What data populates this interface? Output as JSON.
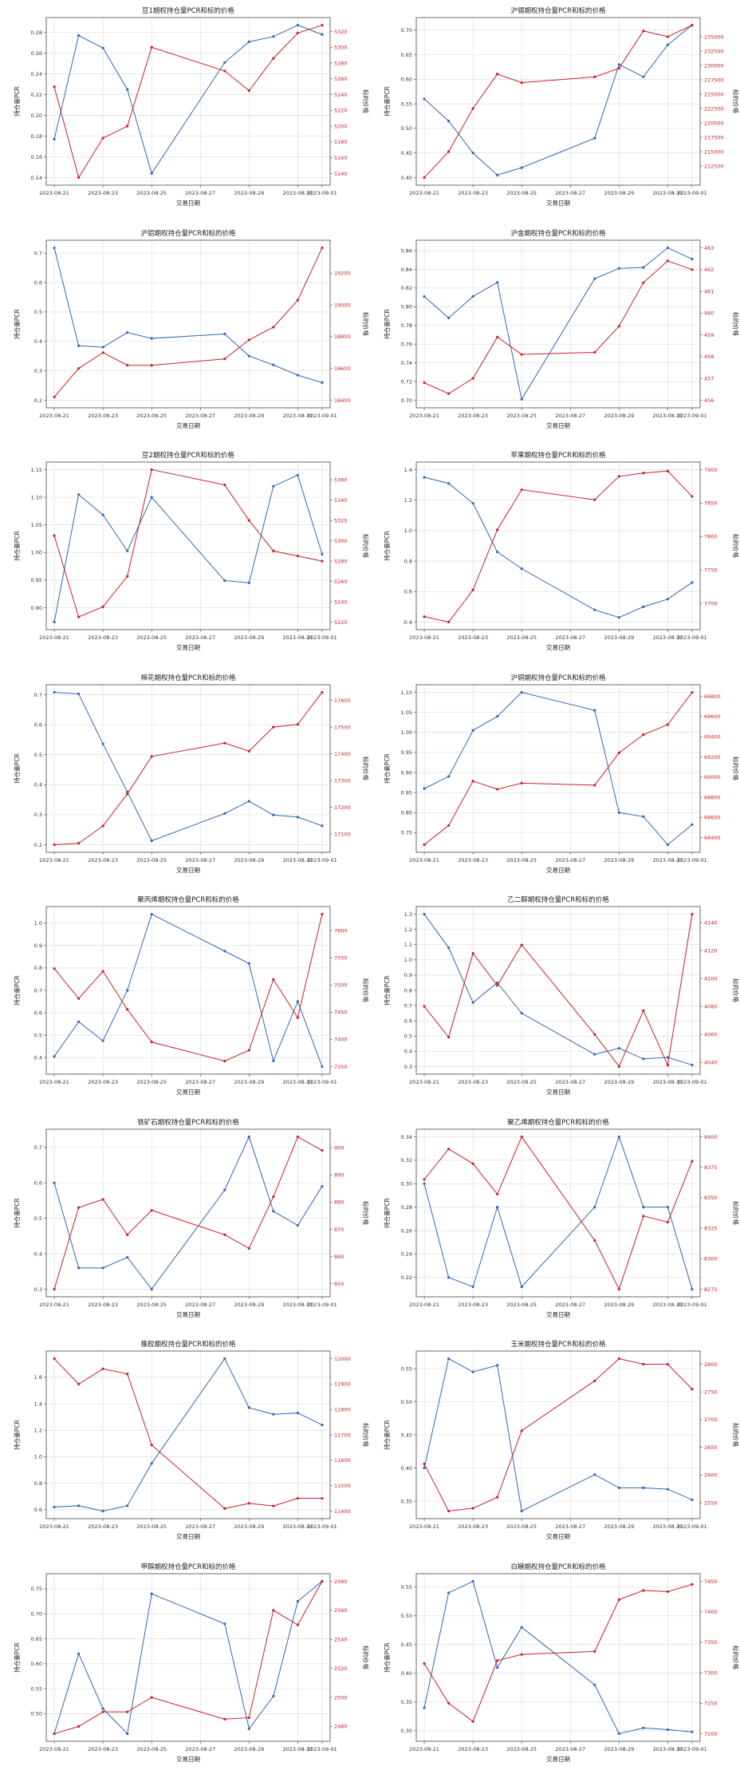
{
  "x_label": "交易日期",
  "y_left_label": "持仓量PCR",
  "y_right_label": "标的价格",
  "dates": [
    "2023-08-21",
    "2023-08-22",
    "2023-08-23",
    "2023-08-24",
    "2023-08-25",
    "2023-08-28",
    "2023-08-29",
    "2023-08-30",
    "2023-08-31",
    "2023-09-01"
  ],
  "x_tick_labels": [
    "2023-08-21",
    "2023-08-23",
    "2023-08-25",
    "2023-08-27",
    "2023-08-29",
    "2023-08-31",
    "2023-09-01"
  ],
  "colors": {
    "pcr": "#3465b8",
    "price": "#c8202a",
    "grid": "#d9d9d9",
    "axis": "#444444"
  },
  "chart_data": [
    {
      "type": "line",
      "title": "豆1期权持仓量PCR和标的价格",
      "left": {
        "values": [
          0.177,
          0.277,
          0.265,
          0.225,
          0.144,
          0.251,
          0.271,
          0.276,
          0.287,
          0.278
        ],
        "ticks": [
          0.14,
          0.16,
          0.18,
          0.2,
          0.22,
          0.24,
          0.26,
          0.28
        ],
        "decimals": 2
      },
      "right": {
        "values": [
          5250,
          5135,
          5185,
          5200,
          5300,
          5270,
          5245,
          5286,
          5318,
          5328
        ],
        "ticks": [
          5140,
          5160,
          5180,
          5200,
          5220,
          5240,
          5260,
          5280,
          5300,
          5320
        ],
        "decimals": 0
      }
    },
    {
      "type": "line",
      "title": "沪锡期权持仓量PCR和标的价格",
      "left": {
        "values": [
          0.56,
          0.515,
          0.45,
          0.405,
          0.42,
          0.48,
          0.63,
          0.605,
          0.67,
          0.71
        ],
        "ticks": [
          0.4,
          0.45,
          0.5,
          0.55,
          0.6,
          0.65,
          0.7
        ],
        "decimals": 2
      },
      "right": {
        "values": [
          210500,
          215000,
          222500,
          228500,
          227000,
          228000,
          229500,
          236000,
          235000,
          237000
        ],
        "ticks": [
          212500,
          215000,
          217500,
          220000,
          222500,
          225000,
          227500,
          230000,
          232500,
          235000
        ],
        "decimals": 0
      }
    },
    {
      "type": "line",
      "title": "沪铝期权持仓量PCR和标的价格",
      "left": {
        "values": [
          0.718,
          0.385,
          0.38,
          0.43,
          0.41,
          0.425,
          0.35,
          0.32,
          0.285,
          0.26
        ],
        "ticks": [
          0.2,
          0.3,
          0.4,
          0.5,
          0.6,
          0.7
        ],
        "decimals": 1
      },
      "right": {
        "values": [
          18420,
          18600,
          18700,
          18620,
          18620,
          18660,
          18780,
          18860,
          19030,
          19360
        ],
        "ticks": [
          18400,
          18600,
          18800,
          19000,
          19200
        ],
        "decimals": 0
      }
    },
    {
      "type": "line",
      "title": "沪金期权持仓量PCR和标的价格",
      "left": {
        "values": [
          0.811,
          0.788,
          0.811,
          0.826,
          0.701,
          0.83,
          0.841,
          0.842,
          0.863,
          0.851
        ],
        "ticks": [
          0.7,
          0.72,
          0.74,
          0.76,
          0.78,
          0.8,
          0.82,
          0.84,
          0.86
        ],
        "decimals": 2
      },
      "right": {
        "values": [
          456.8,
          456.3,
          457.0,
          458.9,
          458.1,
          458.2,
          459.4,
          461.4,
          462.4,
          462.0
        ],
        "ticks": [
          456,
          457,
          458,
          459,
          460,
          461,
          462,
          463
        ],
        "decimals": 0
      }
    },
    {
      "type": "line",
      "title": "豆2期权持仓量PCR和标的价格",
      "left": {
        "values": [
          0.874,
          1.105,
          1.068,
          1.003,
          1.1,
          0.949,
          0.945,
          1.12,
          1.14,
          0.997
        ],
        "ticks": [
          0.9,
          0.95,
          1.0,
          1.05,
          1.1,
          1.15
        ],
        "decimals": 2
      },
      "right": {
        "values": [
          5305,
          5225,
          5235,
          5265,
          5370,
          5355,
          5320,
          5290,
          5285,
          5280
        ],
        "ticks": [
          5220,
          5240,
          5260,
          5280,
          5300,
          5320,
          5340,
          5360
        ],
        "decimals": 0
      }
    },
    {
      "type": "line",
      "title": "苹果期权持仓量PCR和标的价格",
      "left": {
        "values": [
          1.35,
          1.31,
          1.18,
          0.86,
          0.75,
          0.48,
          0.43,
          0.5,
          0.55,
          0.66
        ],
        "ticks": [
          0.4,
          0.6,
          0.8,
          1.0,
          1.2,
          1.4
        ],
        "decimals": 1
      },
      "right": {
        "values": [
          7680,
          7672,
          7720,
          7810,
          7870,
          7855,
          7890,
          7895,
          7898,
          7860
        ],
        "ticks": [
          7700,
          7750,
          7800,
          7850,
          7900
        ],
        "decimals": 0
      }
    },
    {
      "type": "line",
      "title": "棉花期权持仓量PCR和标的价格",
      "left": {
        "values": [
          0.708,
          0.703,
          0.536,
          0.376,
          0.213,
          0.304,
          0.345,
          0.299,
          0.292,
          0.263
        ],
        "ticks": [
          0.2,
          0.3,
          0.4,
          0.5,
          0.6,
          0.7
        ],
        "decimals": 1
      },
      "right": {
        "values": [
          17060,
          17065,
          17130,
          17250,
          17390,
          17440,
          17410,
          17500,
          17510,
          17630
        ],
        "ticks": [
          17100,
          17200,
          17300,
          17400,
          17500,
          17600
        ],
        "decimals": 0
      }
    },
    {
      "type": "line",
      "title": "沪铜期权持仓量PCR和标的价格",
      "left": {
        "values": [
          0.86,
          0.89,
          1.005,
          1.04,
          1.1,
          1.055,
          0.8,
          0.79,
          0.72,
          0.77
        ],
        "ticks": [
          0.75,
          0.8,
          0.85,
          0.9,
          0.95,
          1.0,
          1.05,
          1.1
        ],
        "decimals": 2
      },
      "right": {
        "values": [
          68330,
          68520,
          68960,
          68880,
          68940,
          68920,
          69240,
          69420,
          69520,
          69840
        ],
        "ticks": [
          68400,
          68600,
          68800,
          69000,
          69200,
          69400,
          69600,
          69800
        ],
        "decimals": 0
      }
    },
    {
      "type": "line",
      "title": "聚丙烯期权持仓量PCR和标的价格",
      "left": {
        "values": [
          0.405,
          0.56,
          0.475,
          0.7,
          1.04,
          0.875,
          0.82,
          0.385,
          0.65,
          0.36
        ],
        "ticks": [
          0.4,
          0.5,
          0.6,
          0.7,
          0.8,
          0.9,
          1.0
        ],
        "decimals": 1
      },
      "right": {
        "values": [
          7530,
          7475,
          7525,
          7455,
          7395,
          7360,
          7380,
          7510,
          7440,
          7630
        ],
        "ticks": [
          7350,
          7400,
          7450,
          7500,
          7550,
          7600
        ],
        "decimals": 0
      }
    },
    {
      "type": "line",
      "title": "乙二醇期权持仓量PCR和标的价格",
      "left": {
        "values": [
          1.3,
          1.08,
          0.72,
          0.85,
          0.65,
          0.38,
          0.42,
          0.35,
          0.36,
          0.31
        ],
        "ticks": [
          0.3,
          0.4,
          0.5,
          0.6,
          0.7,
          0.8,
          0.9,
          1.0,
          1.1,
          1.2,
          1.3
        ],
        "decimals": 1
      },
      "right": {
        "values": [
          4080,
          4058,
          4118,
          4095,
          4124,
          4060,
          4037,
          4077,
          4038,
          4146
        ],
        "ticks": [
          4040,
          4060,
          4080,
          4100,
          4120,
          4140
        ],
        "decimals": 0
      }
    },
    {
      "type": "line",
      "title": "铁矿石期权持仓量PCR和标的价格",
      "left": {
        "values": [
          0.6,
          0.36,
          0.36,
          0.39,
          0.3,
          0.58,
          0.73,
          0.52,
          0.48,
          0.59
        ],
        "ticks": [
          0.3,
          0.4,
          0.5,
          0.6,
          0.7
        ],
        "decimals": 1
      },
      "right": {
        "values": [
          848,
          878,
          881,
          868,
          877,
          868,
          863,
          882,
          904,
          899
        ],
        "ticks": [
          850,
          860,
          870,
          880,
          890,
          900
        ],
        "decimals": 0
      }
    },
    {
      "type": "line",
      "title": "聚乙烯期权持仓量PCR和标的价格",
      "left": {
        "values": [
          0.3,
          0.22,
          0.212,
          0.28,
          0.212,
          0.28,
          0.34,
          0.28,
          0.28,
          0.21
        ],
        "ticks": [
          0.22,
          0.24,
          0.26,
          0.28,
          0.3,
          0.32,
          0.34
        ],
        "decimals": 2
      },
      "right": {
        "values": [
          8365,
          8390,
          8378,
          8353,
          8400,
          8315,
          8275,
          8335,
          8330,
          8380
        ],
        "ticks": [
          8275,
          8300,
          8325,
          8350,
          8375,
          8400
        ],
        "decimals": 0
      }
    },
    {
      "type": "line",
      "title": "橡胶期权持仓量PCR和标的价格",
      "left": {
        "values": [
          0.62,
          0.63,
          0.59,
          0.63,
          0.95,
          1.74,
          1.37,
          1.32,
          1.33,
          1.24
        ],
        "ticks": [
          0.6,
          0.8,
          1.0,
          1.2,
          1.4,
          1.6
        ],
        "decimals": 1
      },
      "right": {
        "values": [
          12000,
          11900,
          11960,
          11940,
          11660,
          11410,
          11430,
          11420,
          11450,
          11450
        ],
        "ticks": [
          11400,
          11500,
          11600,
          11700,
          11800,
          11900,
          12000
        ],
        "decimals": 0
      }
    },
    {
      "type": "line",
      "title": "玉米期权持仓量PCR和标的价格",
      "left": {
        "values": [
          0.4,
          0.565,
          0.545,
          0.555,
          0.335,
          0.39,
          0.37,
          0.37,
          0.368,
          0.352
        ],
        "ticks": [
          0.35,
          0.4,
          0.45,
          0.5,
          0.55
        ],
        "decimals": 2
      },
      "right": {
        "values": [
          2620,
          2535,
          2540,
          2560,
          2680,
          2770,
          2810,
          2800,
          2800,
          2755
        ],
        "ticks": [
          2550,
          2600,
          2650,
          2700,
          2750,
          2800
        ],
        "decimals": 0
      }
    },
    {
      "type": "line",
      "title": "甲醇期权持仓量PCR和标的价格",
      "left": {
        "values": [
          0.46,
          0.62,
          0.51,
          0.46,
          0.74,
          0.68,
          0.47,
          0.535,
          0.725,
          0.765
        ],
        "ticks": [
          0.5,
          0.55,
          0.6,
          0.65,
          0.7,
          0.75
        ],
        "decimals": 2
      },
      "right": {
        "values": [
          2475,
          2480,
          2490,
          2490,
          2500,
          2485,
          2486,
          2560,
          2550,
          2580
        ],
        "ticks": [
          2480,
          2500,
          2520,
          2540,
          2560,
          2580
        ],
        "decimals": 0
      }
    },
    {
      "type": "line",
      "title": "白糖期权持仓量PCR和标的价格",
      "left": {
        "values": [
          0.34,
          0.54,
          0.56,
          0.41,
          0.48,
          0.38,
          0.295,
          0.305,
          0.302,
          0.298
        ],
        "ticks": [
          0.3,
          0.35,
          0.4,
          0.45,
          0.5,
          0.55
        ],
        "decimals": 2
      },
      "right": {
        "values": [
          7315,
          7250,
          7220,
          7320,
          7330,
          7335,
          7420,
          7435,
          7433,
          7445
        ],
        "ticks": [
          7200,
          7250,
          7300,
          7350,
          7400,
          7450
        ],
        "decimals": 0
      }
    }
  ]
}
